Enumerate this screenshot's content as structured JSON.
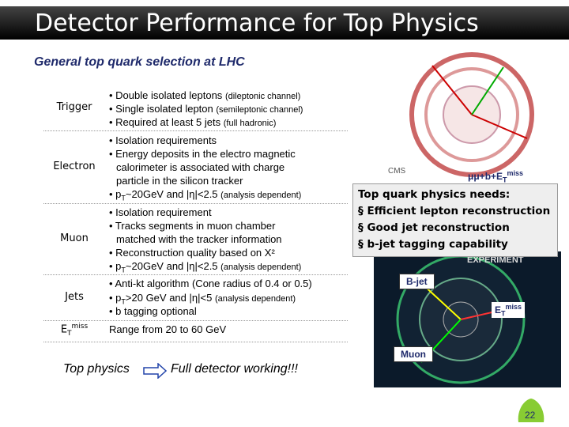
{
  "header": {
    "title": "Detector Performance for Top Physics"
  },
  "subtitle": "General top quark selection at LHC",
  "table": {
    "rows": [
      {
        "label": [
          "Trigger"
        ],
        "items": [
          [
            "• Double isolated leptons",
            "(dileptonic channel)"
          ],
          [
            "• Single isolated lepton",
            "(semileptonic channel)"
          ],
          [
            "• Required at least 5 jets",
            "(full hadronic)"
          ]
        ]
      },
      {
        "label": [
          "Electron"
        ],
        "items": [
          [
            "• Isolation requirements"
          ],
          [
            "• Energy deposits in the electro magnetic"
          ],
          [
            "calorimeter is associated with charge"
          ],
          [
            "particle in the silicon tracker"
          ],
          [
            "• p",
            "T",
            "~20GeV and |η|<2.5",
            "(analysis dependent)"
          ]
        ]
      },
      {
        "label": [
          "Muon"
        ],
        "items": [
          [
            "• Isolation requirement"
          ],
          [
            "• Tracks segments in muon chamber"
          ],
          [
            "matched with the tracker information"
          ],
          [
            "• Reconstruction quality based on X²"
          ],
          [
            "• p",
            "T",
            "~20GeV and |η|<2.5",
            "(analysis dependent)"
          ]
        ]
      },
      {
        "label": [
          "Jets"
        ],
        "items": [
          [
            "• Anti-kt algorithm (Cone radius of 0.4 or 0.5)"
          ],
          [
            "• p",
            "T",
            ">20 GeV and |η|<5",
            "(analysis dependent)"
          ],
          [
            "• b tagging optional"
          ]
        ]
      },
      {
        "label": [
          "E",
          "T",
          "miss"
        ],
        "items": [
          [
            "Range from 20 to 60 GeV"
          ]
        ]
      }
    ]
  },
  "conclusion": {
    "left": "Top physics",
    "right": "Full detector working!!!"
  },
  "images": {
    "top_caption": [
      "μμ+b+E",
      "T",
      "miss"
    ],
    "cms": "CMS",
    "experiment": "EXPERIMENT",
    "bjet": "B-jet",
    "etmiss": [
      "E",
      "T",
      "miss"
    ],
    "muon": "Muon"
  },
  "callout": {
    "title": "Top quark physics needs:",
    "items": [
      "§ Efficient lepton reconstruction",
      "§ Good jet reconstruction",
      "§ b-jet tagging capability"
    ]
  },
  "page_number": "22"
}
